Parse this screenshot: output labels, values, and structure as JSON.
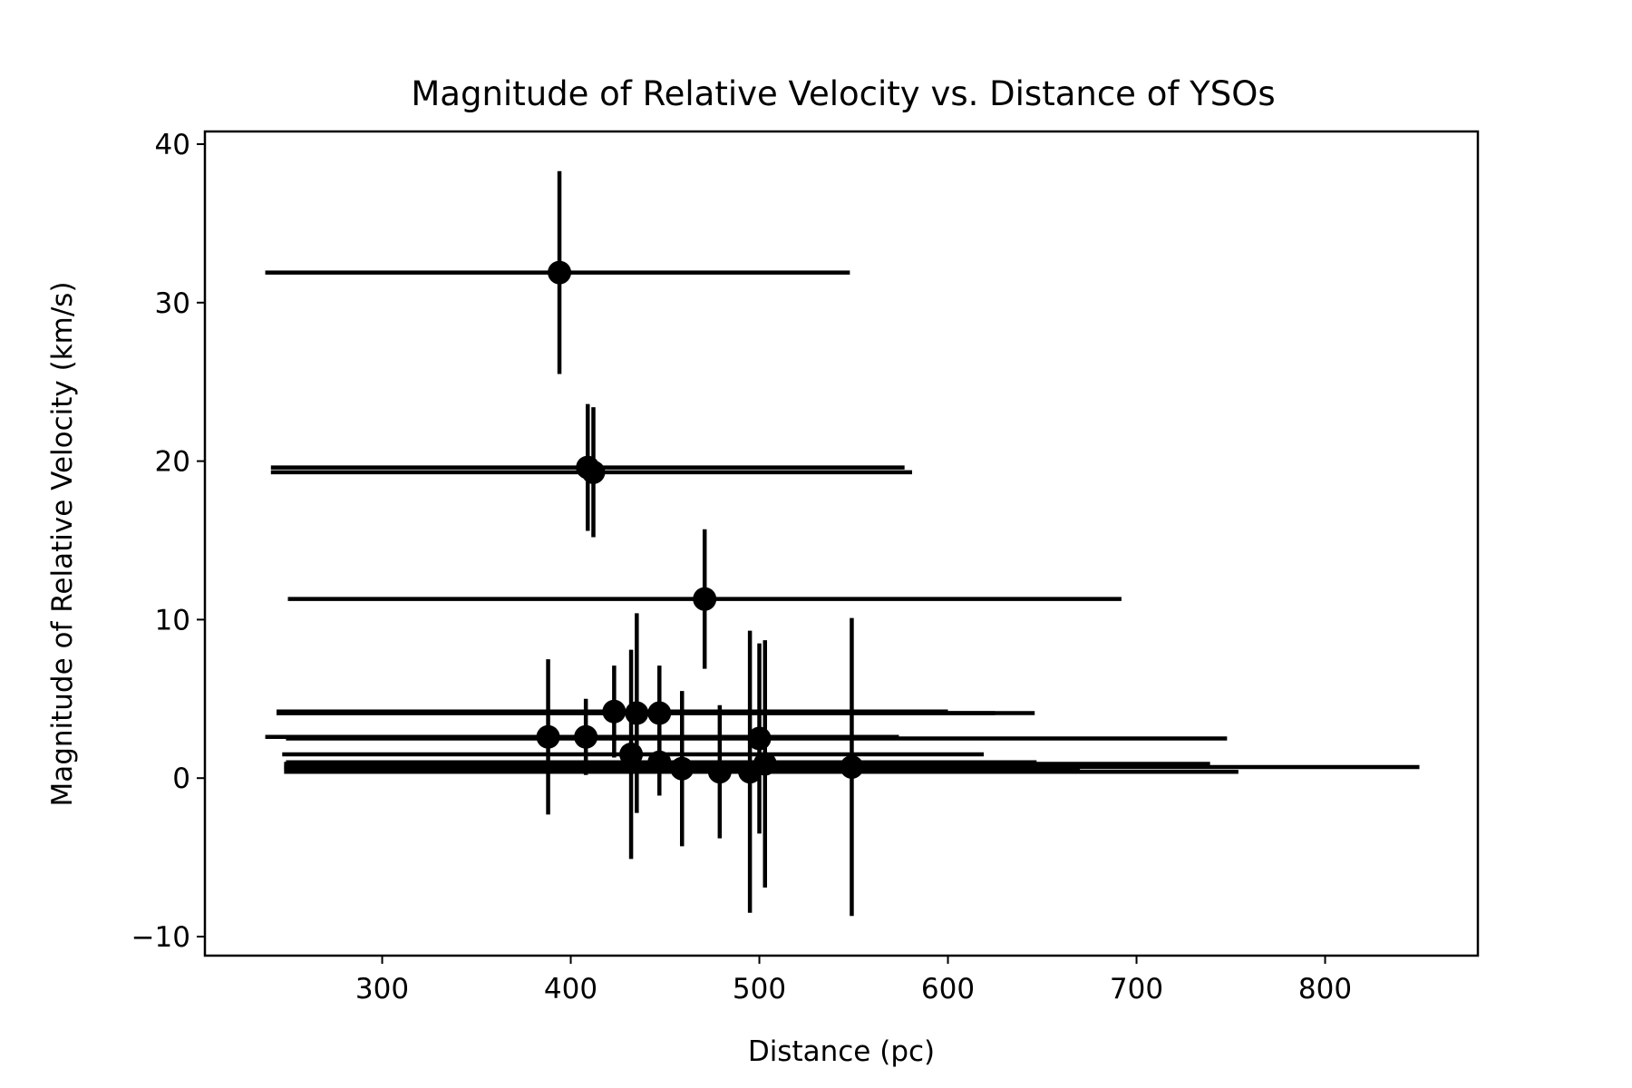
{
  "chart_data": {
    "type": "scatter",
    "title": "Magnitude of Relative Velocity vs. Distance of YSOs",
    "xlabel": "Distance (pc)",
    "ylabel": "Magnitude of Relative Velocity (km/s)",
    "xlim": [
      206,
      881
    ],
    "ylim": [
      -11.2,
      40.8
    ],
    "xticks": [
      300,
      400,
      500,
      600,
      700,
      800
    ],
    "yticks": [
      -10,
      0,
      10,
      20,
      30,
      40
    ],
    "xtick_labels": [
      "300",
      "400",
      "500",
      "600",
      "700",
      "800"
    ],
    "ytick_labels": [
      "−10",
      "0",
      "10",
      "20",
      "30",
      "40"
    ],
    "grid": false,
    "color": "#000000",
    "points": [
      {
        "x": 394,
        "y": 31.9,
        "xerr_lo": 156,
        "xerr_hi": 154,
        "yerr": 6.4
      },
      {
        "x": 409,
        "y": 19.6,
        "xerr_lo": 168,
        "xerr_hi": 168,
        "yerr": 4.0
      },
      {
        "x": 412,
        "y": 19.3,
        "xerr_lo": 171,
        "xerr_hi": 169,
        "yerr": 4.1
      },
      {
        "x": 471,
        "y": 11.3,
        "xerr_lo": 221,
        "xerr_hi": 221,
        "yerr": 4.4
      },
      {
        "x": 423,
        "y": 4.2,
        "xerr_lo": 179,
        "xerr_hi": 177,
        "yerr": 2.9
      },
      {
        "x": 435,
        "y": 4.1,
        "xerr_lo": 191,
        "xerr_hi": 190,
        "yerr": 6.3
      },
      {
        "x": 447,
        "y": 4.1,
        "xerr_lo": 203,
        "xerr_hi": 199,
        "yerr": 3.0
      },
      {
        "x": 388,
        "y": 2.6,
        "xerr_lo": 150,
        "xerr_hi": 150,
        "yerr": 4.9
      },
      {
        "x": 408,
        "y": 2.6,
        "xerr_lo": 160,
        "xerr_hi": 166,
        "yerr": 2.4
      },
      {
        "x": 500,
        "y": 2.5,
        "xerr_lo": 251,
        "xerr_hi": 248,
        "yerr": 6.0
      },
      {
        "x": 432,
        "y": 1.5,
        "xerr_lo": 185,
        "xerr_hi": 187,
        "yerr": 6.6
      },
      {
        "x": 447,
        "y": 1.0,
        "xerr_lo": 198,
        "xerr_hi": 200,
        "yerr": 2.1
      },
      {
        "x": 459,
        "y": 0.6,
        "xerr_lo": 211,
        "xerr_hi": 211,
        "yerr": 4.9
      },
      {
        "x": 479,
        "y": 0.4,
        "xerr_lo": 229,
        "xerr_hi": 229,
        "yerr": 4.2
      },
      {
        "x": 495,
        "y": 0.4,
        "xerr_lo": 247,
        "xerr_hi": 259,
        "yerr": 8.9
      },
      {
        "x": 503,
        "y": 0.9,
        "xerr_lo": 255,
        "xerr_hi": 236,
        "yerr": 7.8
      },
      {
        "x": 549,
        "y": 0.7,
        "xerr_lo": 301,
        "xerr_hi": 301,
        "yerr": 9.4
      }
    ]
  }
}
